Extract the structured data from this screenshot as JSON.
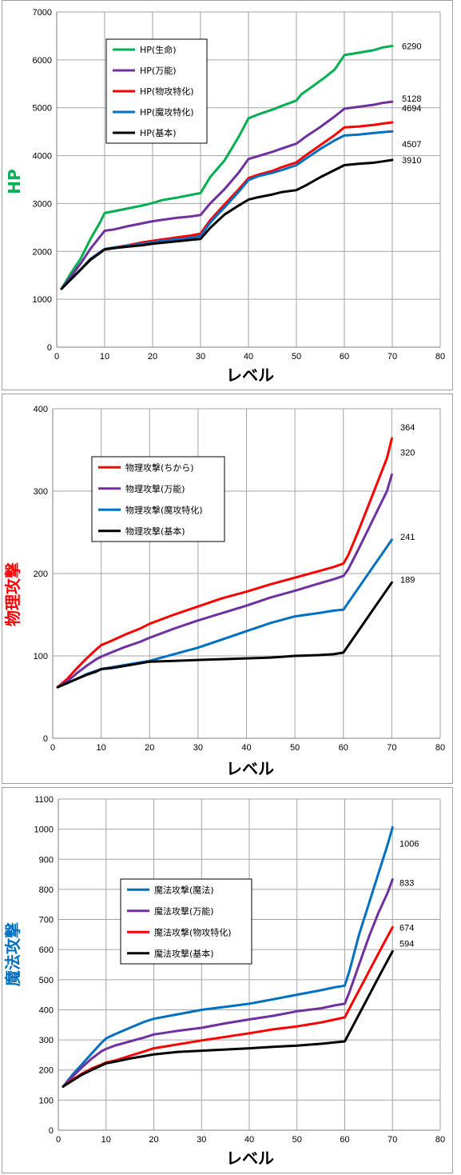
{
  "chart_data": [
    {
      "type": "line",
      "xlabel": "レベル",
      "ylabel": "HP",
      "ylabel_color": "#00b050",
      "xlim": [
        0,
        80
      ],
      "ylim": [
        0,
        7000
      ],
      "xticks": [
        0,
        10,
        20,
        30,
        40,
        50,
        60,
        70,
        80
      ],
      "yticks": [
        0,
        1000,
        2000,
        3000,
        4000,
        5000,
        6000,
        7000
      ],
      "grid": true,
      "legend_position": "top-left",
      "series": [
        {
          "name": "HP(生命)",
          "color": "#00b050",
          "end_label": "6290",
          "x": [
            1,
            3,
            5,
            7,
            9,
            10,
            12,
            15,
            18,
            20,
            22,
            25,
            28,
            30,
            32,
            35,
            38,
            40,
            42,
            45,
            47,
            50,
            51,
            53,
            56,
            58,
            60,
            63,
            66,
            68,
            70
          ],
          "y": [
            1220,
            1550,
            1850,
            2250,
            2600,
            2800,
            2840,
            2900,
            2960,
            3010,
            3070,
            3120,
            3180,
            3220,
            3550,
            3900,
            4400,
            4780,
            4860,
            4960,
            5040,
            5150,
            5280,
            5420,
            5640,
            5800,
            6100,
            6150,
            6200,
            6260,
            6290
          ]
        },
        {
          "name": "HP(万能)",
          "color": "#7030a0",
          "end_label": "5128",
          "x": [
            1,
            3,
            5,
            7,
            10,
            12,
            15,
            18,
            20,
            22,
            25,
            28,
            30,
            32,
            35,
            38,
            40,
            42,
            45,
            47,
            50,
            52,
            55,
            58,
            60,
            63,
            66,
            68,
            70
          ],
          "y": [
            1220,
            1480,
            1750,
            2050,
            2430,
            2460,
            2530,
            2590,
            2630,
            2660,
            2700,
            2730,
            2760,
            3000,
            3300,
            3650,
            3930,
            3990,
            4080,
            4150,
            4250,
            4400,
            4600,
            4820,
            4980,
            5020,
            5060,
            5100,
            5128
          ]
        },
        {
          "name": "HP(物攻特化)",
          "color": "#ff0000",
          "end_label": "4694",
          "x": [
            1,
            3,
            5,
            7,
            10,
            12,
            15,
            18,
            20,
            22,
            25,
            28,
            30,
            32,
            35,
            38,
            40,
            42,
            45,
            47,
            50,
            52,
            55,
            58,
            60,
            63,
            66,
            68,
            70
          ],
          "y": [
            1220,
            1420,
            1620,
            1840,
            2050,
            2080,
            2130,
            2190,
            2220,
            2250,
            2290,
            2330,
            2370,
            2650,
            2980,
            3300,
            3530,
            3600,
            3680,
            3760,
            3860,
            4010,
            4220,
            4430,
            4590,
            4610,
            4640,
            4670,
            4694
          ]
        },
        {
          "name": "HP(魔攻特化)",
          "color": "#0070c0",
          "end_label": "4507",
          "x": [
            1,
            3,
            5,
            7,
            10,
            12,
            15,
            18,
            20,
            22,
            25,
            28,
            30,
            32,
            35,
            38,
            40,
            42,
            45,
            47,
            50,
            52,
            55,
            58,
            60,
            63,
            66,
            68,
            70
          ],
          "y": [
            1220,
            1420,
            1620,
            1840,
            2050,
            2080,
            2120,
            2160,
            2190,
            2220,
            2250,
            2280,
            2320,
            2600,
            2920,
            3250,
            3490,
            3570,
            3640,
            3700,
            3800,
            3940,
            4140,
            4320,
            4420,
            4440,
            4470,
            4490,
            4507
          ]
        },
        {
          "name": "HP(基本)",
          "color": "#000000",
          "end_label": "3910",
          "x": [
            1,
            3,
            5,
            7,
            10,
            12,
            15,
            18,
            20,
            22,
            25,
            28,
            30,
            32,
            35,
            38,
            40,
            42,
            45,
            47,
            50,
            52,
            55,
            58,
            60,
            63,
            66,
            68,
            70
          ],
          "y": [
            1220,
            1420,
            1620,
            1820,
            2040,
            2070,
            2100,
            2130,
            2160,
            2180,
            2210,
            2240,
            2260,
            2490,
            2770,
            2960,
            3080,
            3130,
            3190,
            3240,
            3280,
            3380,
            3550,
            3700,
            3800,
            3830,
            3850,
            3880,
            3910
          ]
        }
      ]
    },
    {
      "type": "line",
      "xlabel": "レベル",
      "ylabel": "物理攻撃",
      "ylabel_color": "#ff0000",
      "xlim": [
        0,
        80
      ],
      "ylim": [
        0,
        400
      ],
      "xticks": [
        0,
        10,
        20,
        30,
        40,
        50,
        60,
        70,
        80
      ],
      "yticks": [
        0,
        100,
        200,
        300,
        400
      ],
      "grid": true,
      "legend_position": "top-left",
      "series": [
        {
          "name": "物理攻撃(ちから)",
          "color": "#ff0000",
          "end_label": "364",
          "x": [
            1,
            3,
            5,
            7,
            9,
            10,
            12,
            15,
            18,
            20,
            25,
            30,
            35,
            40,
            45,
            50,
            55,
            58,
            60,
            61,
            63,
            65,
            67,
            69,
            70
          ],
          "y": [
            62,
            72,
            85,
            97,
            108,
            113,
            118,
            126,
            133,
            139,
            150,
            160,
            170,
            178,
            187,
            195,
            203,
            208,
            212,
            222,
            250,
            280,
            310,
            340,
            364
          ]
        },
        {
          "name": "物理攻撃(万能)",
          "color": "#7030a0",
          "end_label": "320",
          "x": [
            1,
            3,
            5,
            7,
            9,
            10,
            12,
            15,
            18,
            20,
            25,
            30,
            35,
            40,
            45,
            50,
            55,
            58,
            60,
            61,
            63,
            65,
            67,
            69,
            70
          ],
          "y": [
            62,
            69,
            79,
            88,
            96,
            99,
            104,
            111,
            117,
            122,
            133,
            143,
            152,
            161,
            171,
            179,
            188,
            193,
            197,
            205,
            228,
            252,
            276,
            300,
            320
          ]
        },
        {
          "name": "物理攻撃(魔攻特化)",
          "color": "#0070c0",
          "end_label": "241",
          "x": [
            1,
            3,
            5,
            7,
            9,
            10,
            12,
            15,
            18,
            20,
            25,
            30,
            35,
            40,
            45,
            50,
            55,
            58,
            60,
            62,
            64,
            66,
            68,
            70
          ],
          "y": [
            62,
            67,
            72,
            78,
            82,
            84,
            86,
            89,
            92,
            94,
            102,
            110,
            120,
            130,
            140,
            148,
            152,
            155,
            156,
            173,
            190,
            207,
            224,
            241
          ]
        },
        {
          "name": "物理攻撃(基本)",
          "color": "#000000",
          "end_label": "189",
          "x": [
            1,
            3,
            5,
            7,
            9,
            10,
            12,
            15,
            18,
            20,
            25,
            30,
            35,
            40,
            45,
            50,
            55,
            58,
            60,
            62,
            64,
            66,
            68,
            70
          ],
          "y": [
            62,
            67,
            72,
            77,
            81,
            84,
            85,
            88,
            91,
            93,
            94,
            95,
            96,
            97,
            98,
            100,
            101,
            102,
            104,
            121,
            138,
            155,
            172,
            189
          ]
        }
      ]
    },
    {
      "type": "line",
      "xlabel": "レベル",
      "ylabel": "魔法攻撃",
      "ylabel_color": "#0070c0",
      "xlim": [
        0,
        80
      ],
      "ylim": [
        0,
        1100
      ],
      "xticks": [
        0,
        10,
        20,
        30,
        40,
        50,
        60,
        70,
        80
      ],
      "yticks": [
        0,
        100,
        200,
        300,
        400,
        500,
        600,
        700,
        800,
        900,
        1000,
        1100
      ],
      "grid": true,
      "legend_position": "left",
      "series": [
        {
          "name": "魔法攻撃(魔法)",
          "color": "#0070c0",
          "end_label": "1006",
          "x": [
            1,
            3,
            5,
            7,
            9,
            10,
            12,
            15,
            18,
            20,
            25,
            30,
            35,
            40,
            45,
            50,
            55,
            58,
            60,
            61,
            63,
            65,
            67,
            69,
            70
          ],
          "y": [
            145,
            185,
            220,
            255,
            290,
            305,
            320,
            340,
            360,
            370,
            385,
            400,
            410,
            420,
            435,
            450,
            465,
            475,
            480,
            530,
            650,
            750,
            850,
            950,
            1006
          ]
        },
        {
          "name": "魔法攻撃(万能)",
          "color": "#7030a0",
          "end_label": "833",
          "x": [
            1,
            3,
            5,
            7,
            9,
            10,
            12,
            15,
            18,
            20,
            25,
            30,
            35,
            40,
            45,
            50,
            55,
            58,
            60,
            61,
            63,
            65,
            67,
            69,
            70
          ],
          "y": [
            145,
            178,
            210,
            238,
            262,
            270,
            282,
            295,
            308,
            318,
            330,
            340,
            355,
            368,
            380,
            395,
            405,
            415,
            420,
            460,
            550,
            640,
            720,
            790,
            833
          ]
        },
        {
          "name": "魔法攻撃(物攻特化)",
          "color": "#ff0000",
          "end_label": "674",
          "x": [
            1,
            3,
            5,
            7,
            9,
            10,
            12,
            15,
            18,
            20,
            25,
            30,
            35,
            40,
            45,
            50,
            55,
            58,
            60,
            62,
            64,
            66,
            68,
            70
          ],
          "y": [
            145,
            168,
            188,
            205,
            218,
            225,
            232,
            247,
            262,
            272,
            285,
            298,
            310,
            322,
            335,
            345,
            358,
            368,
            375,
            435,
            495,
            555,
            615,
            674
          ]
        },
        {
          "name": "魔法攻撃(基本)",
          "color": "#000000",
          "end_label": "594",
          "x": [
            1,
            3,
            5,
            7,
            9,
            10,
            12,
            15,
            18,
            20,
            25,
            30,
            35,
            40,
            45,
            50,
            55,
            58,
            60,
            62,
            64,
            66,
            68,
            70
          ],
          "y": [
            145,
            165,
            185,
            200,
            215,
            222,
            228,
            238,
            246,
            252,
            260,
            264,
            268,
            272,
            277,
            281,
            287,
            292,
            295,
            355,
            415,
            475,
            535,
            594
          ]
        }
      ]
    }
  ]
}
